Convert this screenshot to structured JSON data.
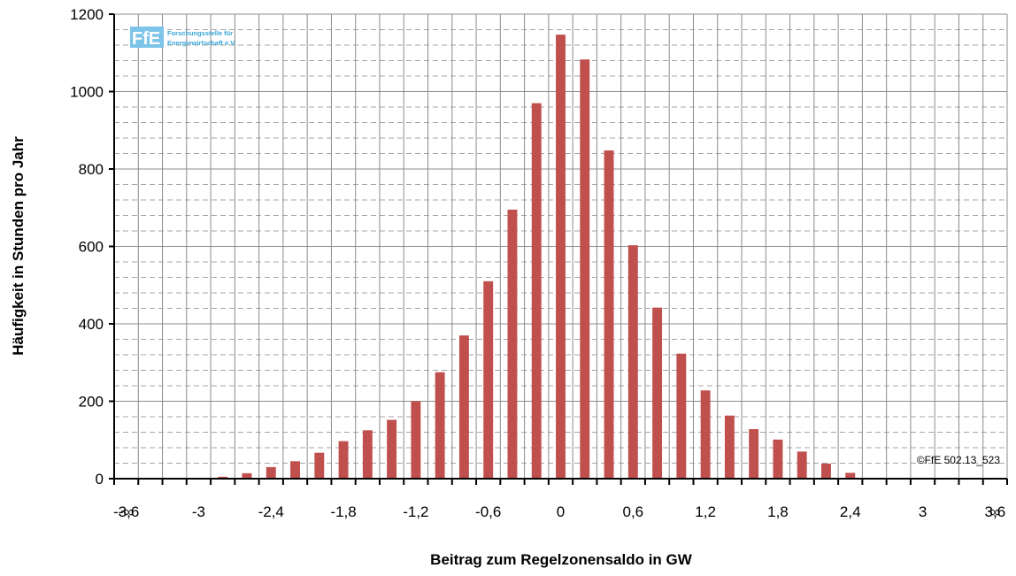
{
  "logo": {
    "text": "FfE",
    "line1": "Forschungsstelle für",
    "line2": "Energiewirtschaft e.V."
  },
  "copyright": "©FfE 502.13_523",
  "chart_data": {
    "type": "bar",
    "title": "",
    "xlabel": "Beitrag zum Regelzonensaldo  in GW",
    "ylabel": "Häufigkeit  in Stunden pro Jahr",
    "ylim": [
      0,
      1200
    ],
    "yticks": [
      "0",
      "200",
      "400",
      "600",
      "800",
      "1000",
      "1200"
    ],
    "xtick_labels": [
      "-∞",
      "-3,6",
      "-3",
      "-2,4",
      "-1,8",
      "-1,2",
      "-0,6",
      "0",
      "0,6",
      "1,2",
      "1,8",
      "2,4",
      "3",
      "3,6",
      "∞"
    ],
    "grid": true,
    "bar_color": "#c0504d",
    "bin_width_gw": 0.2,
    "bin_centers": [
      -3.0,
      -2.8,
      -2.6,
      -2.4,
      -2.2,
      -2.0,
      -1.8,
      -1.6,
      -1.4,
      -1.2,
      -1.0,
      -0.8,
      -0.6,
      -0.4,
      -0.2,
      0.0,
      0.2,
      0.4,
      0.6,
      0.8,
      1.0,
      1.2,
      1.4,
      1.6,
      1.8,
      2.0,
      2.2,
      2.4
    ],
    "values": [
      2,
      5,
      14,
      30,
      45,
      67,
      97,
      125,
      152,
      200,
      275,
      370,
      510,
      695,
      970,
      1147,
      1083,
      848,
      603,
      442,
      323,
      228,
      163,
      128,
      101,
      70,
      39,
      15
    ]
  }
}
